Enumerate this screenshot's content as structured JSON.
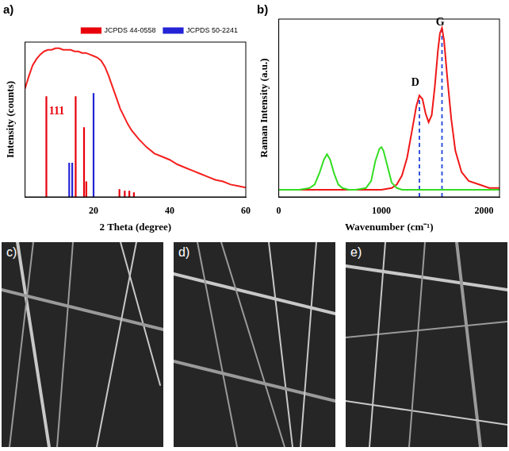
{
  "chart_data": [
    {
      "type": "line",
      "title": "a)",
      "x_label": "2 Theta (degree)",
      "y_label": "Intensity (counts)",
      "xlim": [
        2,
        60
      ],
      "xticks": [
        20,
        40,
        60
      ],
      "ylim": [
        0,
        100
      ],
      "tick_labels": "x",
      "grid": false,
      "legend": "top-right",
      "series": [
        {
          "type": "line",
          "color": "#f5201e",
          "x": [
            2,
            3,
            4,
            5,
            6,
            7,
            8,
            9,
            10,
            11,
            12,
            13,
            14,
            15,
            16,
            17,
            18,
            19,
            20,
            21,
            22,
            23,
            24,
            25,
            26,
            27,
            28,
            29,
            30,
            32,
            34,
            36,
            38,
            40,
            42,
            44,
            46,
            48,
            50,
            52,
            54,
            56,
            58,
            60
          ],
          "values": [
            70,
            78,
            85,
            89,
            92,
            94,
            95,
            95,
            96,
            96,
            95,
            95,
            95,
            94,
            94,
            93,
            93,
            92,
            91,
            90,
            88,
            84,
            78,
            71,
            64,
            57,
            52,
            47,
            43,
            37,
            32,
            28,
            26,
            24,
            21,
            19,
            17,
            15,
            13,
            11,
            10,
            8,
            7,
            6
          ]
        },
        {
          "name": "JCPDS 44-0558",
          "type": "stick",
          "color": "#e8000b",
          "x": [
            7.6,
            15.3,
            17.5,
            18.1,
            26.8,
            28.2,
            29.4,
            30.6
          ],
          "values": [
            65,
            65,
            45,
            10,
            5,
            4,
            4,
            3
          ]
        },
        {
          "name": "JCPDS 50-2241",
          "type": "stick",
          "color": "#2424d6",
          "x": [
            13.6,
            14.4,
            20.0
          ],
          "values": [
            22,
            22,
            67
          ]
        }
      ],
      "annotations": [
        {
          "text": "111",
          "x": 8.3,
          "y": 55,
          "color": "#e8000b"
        }
      ]
    },
    {
      "type": "line",
      "title": "b)",
      "x_label": "Wavenumber (cm⁻¹)",
      "y_label": "Raman Intensity (a.u.)",
      "xlim": [
        0,
        2150
      ],
      "xticks": [
        0,
        1000,
        2000
      ],
      "ylim": [
        0,
        100
      ],
      "tick_labels": "x",
      "grid": false,
      "series": [
        {
          "type": "line",
          "color": "#33dd22",
          "x": [
            0,
            100,
            200,
            300,
            350,
            400,
            440,
            470,
            500,
            540,
            580,
            620,
            680,
            750,
            850,
            900,
            940,
            980,
            1000,
            1020,
            1060,
            1100,
            1150,
            1200,
            1300,
            1500,
            1800,
            2150
          ],
          "values": [
            4,
            4,
            4,
            5,
            7,
            14,
            21,
            24,
            21,
            13,
            7,
            5,
            4,
            4,
            5,
            9,
            20,
            27,
            28,
            26,
            17,
            8,
            5,
            4,
            4,
            4,
            4,
            4
          ]
        },
        {
          "type": "line",
          "color": "#f01818",
          "x": [
            0,
            200,
            400,
            600,
            800,
            1000,
            1100,
            1150,
            1200,
            1250,
            1300,
            1340,
            1370,
            1400,
            1430,
            1460,
            1490,
            1520,
            1550,
            1570,
            1590,
            1610,
            1640,
            1680,
            1720,
            1780,
            1850,
            1950,
            2050,
            2150
          ],
          "values": [
            4,
            4,
            4,
            4,
            4,
            4,
            5,
            7,
            12,
            22,
            38,
            51,
            57,
            55,
            47,
            42,
            46,
            62,
            82,
            92,
            95,
            88,
            68,
            44,
            26,
            14,
            9,
            7,
            5,
            5
          ]
        },
        {
          "type": "line",
          "color": "#3355dd",
          "line_style": "dashed",
          "x": [
            1370,
            1370
          ],
          "values": [
            0,
            57
          ]
        },
        {
          "type": "line",
          "color": "#3355dd",
          "line_style": "dashed",
          "x": [
            1590,
            1590
          ],
          "values": [
            0,
            95
          ]
        }
      ],
      "annotations": [
        {
          "text": "D",
          "x": 1290,
          "y": 64,
          "color": "#000000"
        },
        {
          "text": "G",
          "x": 1530,
          "y": 98,
          "color": "#000000"
        }
      ]
    }
  ],
  "images": [
    {
      "label": "c)"
    },
    {
      "label": "d)"
    },
    {
      "label": "e)"
    }
  ]
}
